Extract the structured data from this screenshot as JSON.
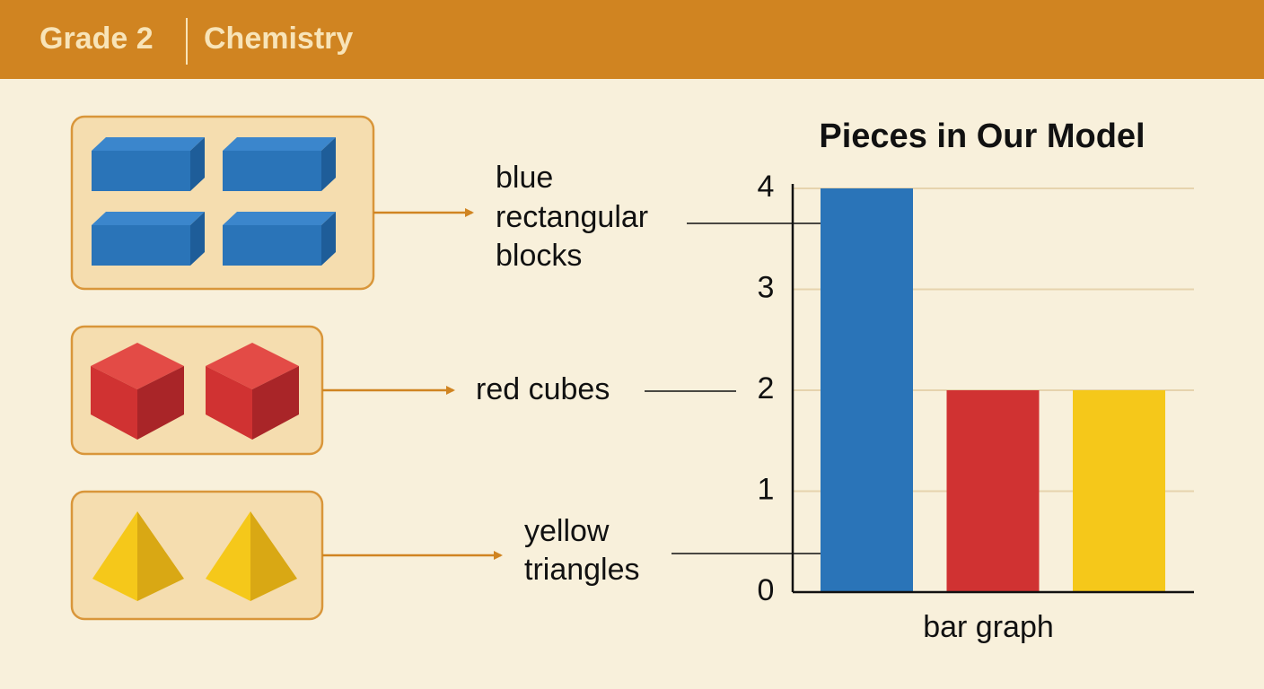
{
  "header": {
    "grade": "Grade 2",
    "subject": "Chemistry"
  },
  "items": [
    {
      "label_lines": [
        "blue",
        "rectangular",
        "blocks"
      ]
    },
    {
      "label_lines": [
        "red cubes"
      ]
    },
    {
      "label_lines": [
        "yellow",
        "triangles"
      ]
    }
  ],
  "chart_data": {
    "type": "bar",
    "title": "Pieces in Our Model",
    "x_label": "bar graph",
    "categories": [
      null,
      null,
      null
    ],
    "values": [
      4,
      2,
      2
    ],
    "colors": [
      "#2a74b8",
      "#d03232",
      "#f5c81a"
    ],
    "ylim": [
      0,
      4
    ],
    "yticks": [
      0,
      1,
      2,
      3,
      4
    ],
    "grid": true
  }
}
